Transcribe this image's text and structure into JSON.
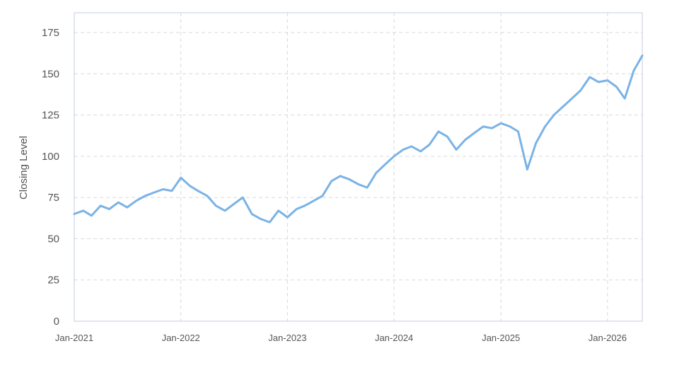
{
  "chart_data": {
    "type": "line",
    "title": "",
    "xlabel": "",
    "ylabel": "Closing Level",
    "ylim": [
      0,
      187
    ],
    "y_ticks": [
      0,
      25,
      50,
      75,
      100,
      125,
      150,
      175
    ],
    "x_range": [
      "2021-01-01",
      "2026-04-30"
    ],
    "x_ticks": [
      {
        "date": "2021-01-01",
        "label": "Jan-2021"
      },
      {
        "date": "2022-01-01",
        "label": "Jan-2022"
      },
      {
        "date": "2023-01-01",
        "label": "Jan-2023"
      },
      {
        "date": "2024-01-01",
        "label": "Jan-2024"
      },
      {
        "date": "2025-01-01",
        "label": "Jan-2025"
      },
      {
        "date": "2026-01-01",
        "label": "Jan-2026"
      }
    ],
    "grid": true,
    "colors": {
      "line": "#7ab3e6",
      "grid": "#d9d9d9",
      "axis": "#c5cde0",
      "text": "#555555"
    },
    "series": [
      {
        "x": [
          "2021-01-01",
          "2021-02-01",
          "2021-03-01",
          "2021-04-01",
          "2021-05-01",
          "2021-06-01",
          "2021-07-01",
          "2021-08-01",
          "2021-09-01",
          "2021-10-01",
          "2021-11-01",
          "2021-12-01",
          "2022-01-01",
          "2022-02-01",
          "2022-03-01",
          "2022-04-01",
          "2022-05-01",
          "2022-06-01",
          "2022-07-01",
          "2022-08-01",
          "2022-09-01",
          "2022-10-01",
          "2022-11-01",
          "2022-12-01",
          "2023-01-01",
          "2023-02-01",
          "2023-03-01",
          "2023-04-01",
          "2023-05-01",
          "2023-06-01",
          "2023-07-01",
          "2023-08-01",
          "2023-09-01",
          "2023-10-01",
          "2023-11-01",
          "2023-12-01",
          "2024-01-01",
          "2024-02-01",
          "2024-03-01",
          "2024-04-01",
          "2024-05-01",
          "2024-06-01",
          "2024-07-01",
          "2024-08-01",
          "2024-09-01",
          "2024-10-01",
          "2024-11-01",
          "2024-12-01",
          "2025-01-01",
          "2025-02-01",
          "2025-03-01",
          "2025-04-01",
          "2025-05-01",
          "2025-06-01",
          "2025-07-01",
          "2025-08-01",
          "2025-09-01",
          "2025-10-01",
          "2025-11-01",
          "2025-12-01",
          "2026-01-01",
          "2026-02-01",
          "2026-03-01",
          "2026-04-01",
          "2026-04-30"
        ],
        "y": [
          65,
          67,
          64,
          70,
          68,
          72,
          69,
          73,
          76,
          78,
          80,
          79,
          87,
          82,
          79,
          76,
          70,
          67,
          71,
          75,
          65,
          62,
          60,
          67,
          63,
          68,
          70,
          73,
          76,
          85,
          88,
          86,
          83,
          81,
          90,
          95,
          100,
          104,
          106,
          103,
          107,
          115,
          112,
          104,
          110,
          114,
          118,
          117,
          120,
          118,
          115,
          92,
          108,
          118,
          125,
          130,
          135,
          140,
          148,
          145,
          146,
          142,
          135,
          152,
          161
        ]
      }
    ]
  }
}
